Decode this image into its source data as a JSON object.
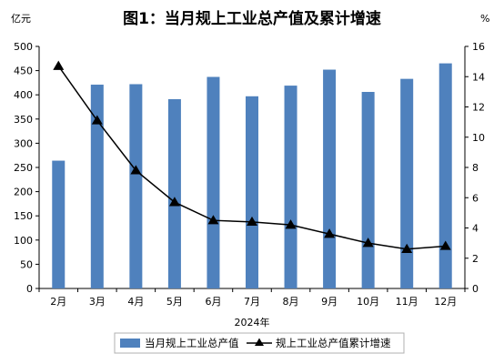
{
  "chart_data": {
    "type": "bar",
    "title": "图1：当月规上工业总产值及累计增速",
    "xlabel": "2024年",
    "left_unit": "亿元",
    "right_unit": "%",
    "categories": [
      "2月",
      "3月",
      "4月",
      "5月",
      "6月",
      "7月",
      "8月",
      "9月",
      "10月",
      "11月",
      "12月"
    ],
    "series": [
      {
        "name": "当月规上工业总产值",
        "type": "bar",
        "axis": "left",
        "color": "#4F81BD",
        "values": [
          264,
          421,
          422,
          391,
          437,
          397,
          419,
          452,
          406,
          433,
          465
        ]
      },
      {
        "name": "规上工业总产值累计增速",
        "type": "line",
        "axis": "right",
        "color": "#000000",
        "marker": "triangle",
        "values": [
          14.7,
          11.1,
          7.8,
          5.7,
          4.5,
          4.4,
          4.2,
          3.6,
          3.0,
          2.6,
          2.8
        ]
      }
    ],
    "ylim_left": [
      0,
      500
    ],
    "ylim_right": [
      0,
      16
    ],
    "yticks_left": [
      "0",
      "50",
      "100",
      "150",
      "200",
      "250",
      "300",
      "350",
      "400",
      "450",
      "500"
    ],
    "yticks_right": [
      "0",
      "2",
      "4",
      "6",
      "8",
      "10",
      "12",
      "14",
      "16"
    ],
    "grid": false,
    "legend_position": "bottom"
  }
}
